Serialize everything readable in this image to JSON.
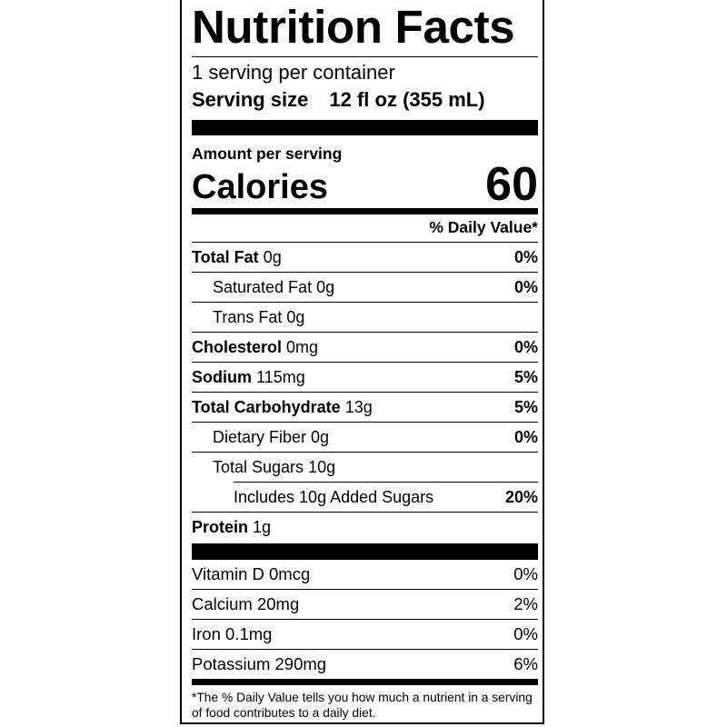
{
  "title": "Nutrition Facts",
  "servings_per_container": "1 serving per container",
  "serving_size": {
    "label": "Serving size",
    "value": "12 fl oz (355 mL)"
  },
  "amount_per_serving": "Amount per serving",
  "calories": {
    "label": "Calories",
    "value": "60"
  },
  "daily_value_header": "% Daily Value*",
  "nutrients": [
    {
      "name": "Total Fat",
      "amount": "0g",
      "dv": "0%"
    },
    {
      "name": "Saturated Fat",
      "amount": "0g",
      "dv": "0%"
    },
    {
      "name": "Trans Fat",
      "amount": "0g",
      "dv": ""
    },
    {
      "name": "Cholesterol",
      "amount": "0mg",
      "dv": "0%"
    },
    {
      "name": "Sodium",
      "amount": "115mg",
      "dv": "5%"
    },
    {
      "name": "Total Carbohydrate",
      "amount": "13g",
      "dv": "5%"
    },
    {
      "name": "Dietary Fiber",
      "amount": "0g",
      "dv": "0%"
    },
    {
      "name": "Total Sugars",
      "amount": "10g",
      "dv": ""
    },
    {
      "name": "Includes 10g Added Sugars",
      "amount": "",
      "dv": "20%"
    },
    {
      "name": "Protein",
      "amount": "1g",
      "dv": ""
    }
  ],
  "vitamins": [
    {
      "text": "Vitamin D 0mcg",
      "dv": "0%"
    },
    {
      "text": "Calcium 20mg",
      "dv": "2%"
    },
    {
      "text": "Iron 0.1mg",
      "dv": "0%"
    },
    {
      "text": "Potassium 290mg",
      "dv": "6%"
    }
  ],
  "footnote": "*The % Daily Value tells you how much a nutrient in a serving of food contributes to a daily diet."
}
